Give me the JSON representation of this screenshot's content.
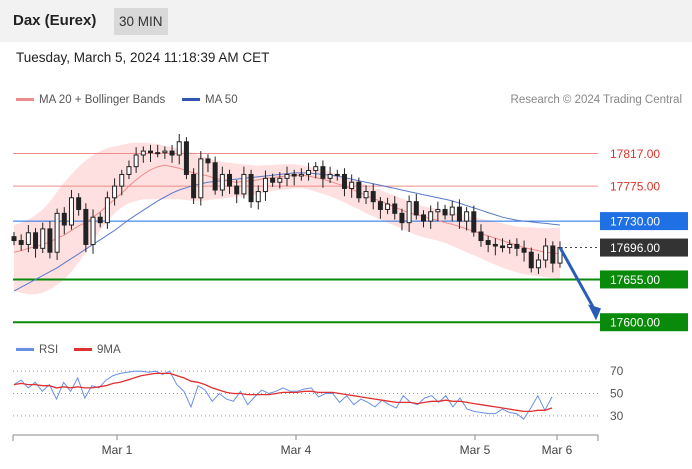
{
  "header": {
    "instrument": "Dax (Eurex)",
    "timeframe": "30 MIN"
  },
  "timestamp": "Tuesday, March 5, 2024 11:18:39 AM CET",
  "legend": {
    "ma20": "MA 20 + Bollinger Bands",
    "ma50": "MA 50",
    "rsi": "RSI",
    "ma9": "9MA"
  },
  "credit": "Research © 2024 Trading Central",
  "colors": {
    "ma20": "#f08b8b",
    "band": "#ffd6d6",
    "ma50": "#5b79c9",
    "up": "#333333",
    "rsi": "#6a8fe6",
    "rsi_ma": "#e03030",
    "support": "#0a8a0a",
    "resistance": "#f08b8b",
    "current": "#333333",
    "pivot": "#1f6fe5",
    "arrow": "#2a5db5"
  },
  "chart_data": [
    {
      "type": "candlestick",
      "x_ticks": [
        "Mar 1",
        "Mar 4",
        "Mar 5",
        "Mar 6"
      ],
      "ylim": [
        17590,
        17860
      ],
      "levels": [
        {
          "value": 17817,
          "label": "17817.00",
          "kind": "resistance"
        },
        {
          "value": 17775,
          "label": "17775.00",
          "kind": "resistance"
        },
        {
          "value": 17730,
          "label": "17730.00",
          "kind": "pivot"
        },
        {
          "value": 17696,
          "label": "17696.00",
          "kind": "current"
        },
        {
          "value": 17655,
          "label": "17655.00",
          "kind": "support"
        },
        {
          "value": 17600,
          "label": "17600.00",
          "kind": "support"
        }
      ],
      "close": [
        17705,
        17700,
        17715,
        17695,
        17720,
        17690,
        17740,
        17725,
        17760,
        17745,
        17700,
        17735,
        17728,
        17760,
        17775,
        17790,
        17800,
        17815,
        17820,
        17818,
        17818,
        17820,
        17815,
        17832,
        17790,
        17760,
        17810,
        17805,
        17770,
        17790,
        17775,
        17765,
        17790,
        17755,
        17768,
        17785,
        17780,
        17785,
        17790,
        17788,
        17790,
        17795,
        17800,
        17785,
        17790,
        17790,
        17772,
        17780,
        17760,
        17768,
        17755,
        17745,
        17752,
        17740,
        17728,
        17755,
        17738,
        17730,
        17742,
        17745,
        17738,
        17748,
        17730,
        17742,
        17716,
        17705,
        17700,
        17698,
        17696,
        17700,
        17695,
        17690,
        17670,
        17680,
        17698,
        17676,
        17696
      ],
      "ma20": [
        17690,
        17692,
        17695,
        17697,
        17700,
        17703,
        17708,
        17712,
        17718,
        17724,
        17728,
        17735,
        17742,
        17750,
        17758,
        17766,
        17775,
        17783,
        17790,
        17796,
        17800,
        17802,
        17800,
        17798,
        17795,
        17792,
        17790,
        17788,
        17785,
        17783,
        17781,
        17780,
        17781,
        17782,
        17783,
        17785,
        17786,
        17787,
        17788,
        17789,
        17789,
        17788,
        17786,
        17784,
        17781,
        17778,
        17775,
        17771,
        17767,
        17763,
        17759,
        17756,
        17752,
        17748,
        17744,
        17741,
        17738,
        17736,
        17733,
        17731,
        17728,
        17726,
        17723,
        17720,
        17717,
        17714,
        17711,
        17708,
        17705,
        17702,
        17699,
        17696,
        17694,
        17692,
        17690,
        17689,
        17688
      ],
      "bb_upper": [
        17725,
        17728,
        17732,
        17738,
        17745,
        17755,
        17768,
        17780,
        17790,
        17800,
        17808,
        17815,
        17820,
        17824,
        17826,
        17828,
        17830,
        17831,
        17831,
        17830,
        17829,
        17827,
        17825,
        17823,
        17820,
        17817,
        17814,
        17811,
        17808,
        17806,
        17805,
        17804,
        17803,
        17802,
        17801,
        17802,
        17802,
        17803,
        17803,
        17803,
        17802,
        17800,
        17798,
        17796,
        17793,
        17790,
        17787,
        17784,
        17780,
        17777,
        17773,
        17770,
        17766,
        17763,
        17759,
        17756,
        17752,
        17749,
        17747,
        17745,
        17743,
        17741,
        17739,
        17737,
        17735,
        17733,
        17731,
        17729,
        17727,
        17725,
        17723,
        17722,
        17722,
        17721,
        17721,
        17721,
        17722
      ],
      "bb_lower": [
        17640,
        17638,
        17636,
        17636,
        17638,
        17642,
        17648,
        17655,
        17665,
        17677,
        17690,
        17705,
        17718,
        17730,
        17740,
        17748,
        17753,
        17756,
        17758,
        17758,
        17758,
        17758,
        17758,
        17758,
        17757,
        17756,
        17756,
        17757,
        17758,
        17759,
        17760,
        17761,
        17762,
        17763,
        17765,
        17767,
        17769,
        17770,
        17771,
        17772,
        17772,
        17771,
        17768,
        17765,
        17762,
        17758,
        17754,
        17749,
        17745,
        17740,
        17736,
        17732,
        17728,
        17724,
        17720,
        17716,
        17712,
        17709,
        17707,
        17705,
        17702,
        17698,
        17694,
        17690,
        17686,
        17682,
        17678,
        17674,
        17670,
        17667,
        17664,
        17662,
        17660,
        17659,
        17658,
        17657,
        17656
      ],
      "ma50": [
        17640,
        17645,
        17650,
        17655,
        17660,
        17665,
        17670,
        17676,
        17682,
        17688,
        17694,
        17700,
        17706,
        17712,
        17718,
        17725,
        17732,
        17738,
        17744,
        17750,
        17756,
        17761,
        17766,
        17770,
        17773,
        17776,
        17778,
        17780,
        17781,
        17782,
        17783,
        17784,
        17785,
        17786,
        17787,
        17788,
        17789,
        17790,
        17791,
        17792,
        17792,
        17792,
        17791,
        17790,
        17789,
        17788,
        17786,
        17784,
        17782,
        17780,
        17778,
        17776,
        17774,
        17772,
        17770,
        17768,
        17766,
        17764,
        17762,
        17760,
        17758,
        17756,
        17753,
        17750,
        17747,
        17744,
        17741,
        17738,
        17735,
        17733,
        17731,
        17730,
        17729,
        17728,
        17727,
        17726,
        17725
      ]
    },
    {
      "type": "line",
      "name": "RSI",
      "ylim": [
        20,
        80
      ],
      "y_ticks": [
        70,
        50,
        30
      ],
      "rsi": [
        58,
        62,
        55,
        60,
        52,
        58,
        45,
        60,
        52,
        64,
        46,
        57,
        55,
        62,
        66,
        68,
        69,
        70,
        70,
        69,
        70,
        67,
        70,
        58,
        52,
        38,
        57,
        53,
        43,
        50,
        45,
        43,
        52,
        40,
        47,
        53,
        50,
        52,
        55,
        52,
        52,
        54,
        55,
        47,
        50,
        50,
        42,
        48,
        40,
        45,
        42,
        38,
        44,
        40,
        37,
        48,
        42,
        40,
        46,
        48,
        42,
        48,
        38,
        46,
        36,
        34,
        33,
        32,
        32,
        36,
        33,
        32,
        27,
        37,
        48,
        35,
        47
      ],
      "ma9": [
        58,
        59,
        58,
        58,
        57,
        57,
        55,
        56,
        55,
        56,
        55,
        55,
        56,
        57,
        59,
        60,
        62,
        64,
        66,
        67,
        68,
        68,
        68,
        66,
        64,
        61,
        60,
        58,
        55,
        53,
        51,
        50,
        50,
        49,
        49,
        49,
        49,
        50,
        51,
        51,
        51,
        52,
        52,
        51,
        51,
        51,
        50,
        49,
        48,
        47,
        46,
        45,
        44,
        43,
        42,
        42,
        42,
        41,
        42,
        43,
        43,
        44,
        43,
        43,
        42,
        41,
        40,
        39,
        38,
        37,
        36,
        35,
        34,
        34,
        35,
        35,
        37
      ]
    }
  ]
}
